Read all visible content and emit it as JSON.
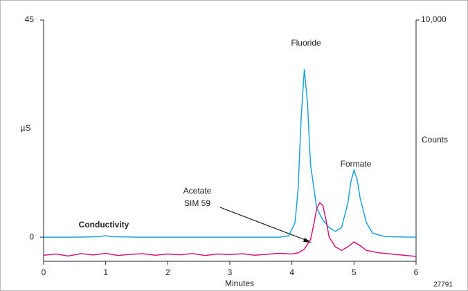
{
  "chart_data": {
    "type": "line",
    "xlabel": "Minutes",
    "ylabel": "µS",
    "y2label": "Counts",
    "xlim": [
      0,
      6
    ],
    "xticks": [
      0,
      1,
      2,
      3,
      4,
      5,
      6
    ],
    "ylim": [
      -5,
      45
    ],
    "yticks": [
      0,
      45
    ],
    "y2lim": [
      0,
      10000
    ],
    "y2ticks": [
      {
        "value": 10000,
        "label": "10,000"
      }
    ],
    "series": [
      {
        "name": "Conductivity",
        "color": "#1aa3d9",
        "x": [
          0,
          0.5,
          0.9,
          1.0,
          1.1,
          1.5,
          2,
          3,
          3.8,
          3.95,
          4.05,
          4.1,
          4.15,
          4.2,
          4.25,
          4.3,
          4.4,
          4.5,
          4.6,
          4.7,
          4.8,
          4.9,
          4.95,
          5.0,
          5.05,
          5.1,
          5.2,
          5.3,
          5.5,
          6
        ],
        "values": [
          0,
          0,
          0.1,
          0.3,
          0.1,
          0,
          0,
          0,
          0,
          0.3,
          3,
          10,
          25,
          34.8,
          28,
          15,
          6,
          3.5,
          2,
          1.2,
          2,
          7,
          11.5,
          13.9,
          12,
          8,
          3,
          0.8,
          0.1,
          0
        ]
      },
      {
        "color": "#d4147f",
        "axis": "y2",
        "x": [
          0,
          0.2,
          0.4,
          0.6,
          0.8,
          1.0,
          1.2,
          1.4,
          1.6,
          1.8,
          2.0,
          2.2,
          2.4,
          2.6,
          2.8,
          3.0,
          3.2,
          3.4,
          3.6,
          3.8,
          4.0,
          4.1,
          4.2,
          4.3,
          4.35,
          4.4,
          4.45,
          4.5,
          4.55,
          4.6,
          4.7,
          4.8,
          4.9,
          5.0,
          5.1,
          5.2,
          5.4,
          5.6,
          5.8,
          6.0
        ],
        "values": [
          250,
          300,
          220,
          320,
          260,
          330,
          240,
          290,
          310,
          250,
          300,
          270,
          320,
          240,
          300,
          280,
          310,
          250,
          290,
          330,
          300,
          350,
          500,
          900,
          1500,
          2200,
          2430,
          2300,
          1700,
          1000,
          600,
          450,
          600,
          800,
          650,
          450,
          350,
          300,
          250,
          200
        ]
      }
    ],
    "annotations": [
      {
        "lines": [
          "Fluoride"
        ]
      },
      {
        "lines": [
          "Formate"
        ]
      },
      {
        "lines": [
          "Acetate",
          "SIM 59"
        ]
      },
      {
        "lines": [
          "27791"
        ]
      }
    ]
  }
}
